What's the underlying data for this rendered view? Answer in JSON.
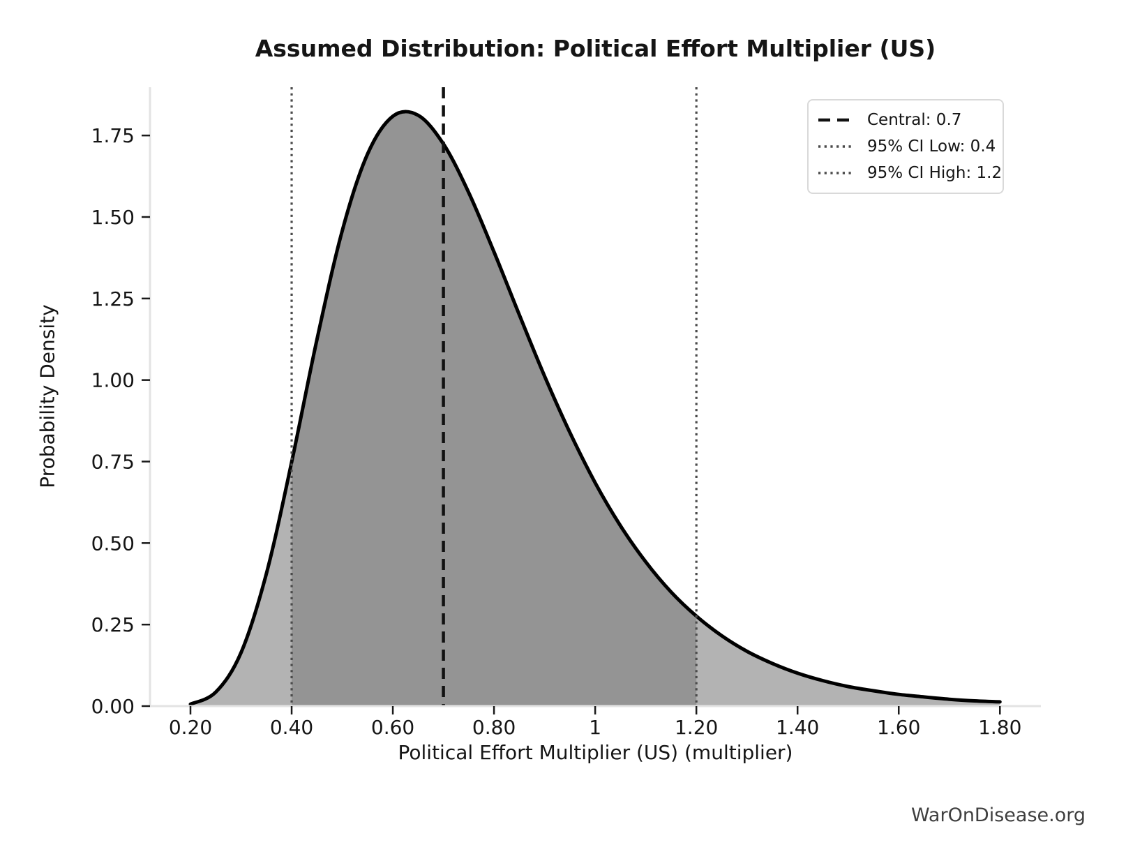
{
  "title": "Assumed Distribution: Political Effort Multiplier (US)",
  "watermark": "WarOnDisease.org",
  "legend": {
    "items": [
      {
        "label": "Central: 0.7",
        "line_style": "dashed",
        "color": "#111111"
      },
      {
        "label": "95% CI Low: 0.4",
        "line_style": "dotted",
        "color": "#4a4a4a"
      },
      {
        "label": "95% CI High: 1.2",
        "line_style": "dotted",
        "color": "#4a4a4a"
      }
    ]
  },
  "chart_data": {
    "type": "area",
    "title": "Assumed Distribution: Political Effort Multiplier (US)",
    "xlabel": "Political Effort Multiplier (US) (multiplier)",
    "ylabel": "Probability Density",
    "xlim": [
      0.12,
      1.881
    ],
    "ylim": [
      0,
      1.898
    ],
    "grid": false,
    "legend_position": "upper right",
    "distribution": "right-skewed (lognormal-like) probability density, central 0.7 with 95% CI [0.4, 1.2]",
    "central": 0.7,
    "ci_low": 0.4,
    "ci_high": 1.2,
    "x_ticks": [
      {
        "value": 0.2,
        "label": "0.20"
      },
      {
        "value": 0.4,
        "label": "0.40"
      },
      {
        "value": 0.6,
        "label": "0.60"
      },
      {
        "value": 0.8,
        "label": "0.80"
      },
      {
        "value": 1.0,
        "label": "1"
      },
      {
        "value": 1.2,
        "label": "1.20"
      },
      {
        "value": 1.4,
        "label": "1.40"
      },
      {
        "value": 1.6,
        "label": "1.60"
      },
      {
        "value": 1.8,
        "label": "1.80"
      }
    ],
    "y_ticks": [
      {
        "value": 0.0,
        "label": "0.00"
      },
      {
        "value": 0.25,
        "label": "0.25"
      },
      {
        "value": 0.5,
        "label": "0.50"
      },
      {
        "value": 0.75,
        "label": "0.75"
      },
      {
        "value": 1.0,
        "label": "1.00"
      },
      {
        "value": 1.25,
        "label": "1.25"
      },
      {
        "value": 1.5,
        "label": "1.50"
      },
      {
        "value": 1.75,
        "label": "1.75"
      }
    ],
    "curve": {
      "x": [
        0.2,
        0.25,
        0.3,
        0.35,
        0.4,
        0.45,
        0.5,
        0.55,
        0.6,
        0.65,
        0.7,
        0.75,
        0.8,
        0.85,
        0.9,
        0.95,
        1.0,
        1.05,
        1.1,
        1.15,
        1.2,
        1.25,
        1.3,
        1.35,
        1.4,
        1.45,
        1.5,
        1.55,
        1.6,
        1.65,
        1.7,
        1.75,
        1.8
      ],
      "density": [
        0.006,
        0.043,
        0.164,
        0.406,
        0.748,
        1.124,
        1.458,
        1.693,
        1.809,
        1.812,
        1.724,
        1.575,
        1.393,
        1.2,
        1.012,
        0.839,
        0.685,
        0.553,
        0.442,
        0.35,
        0.276,
        0.216,
        0.168,
        0.131,
        0.101,
        0.078,
        0.06,
        0.047,
        0.036,
        0.028,
        0.021,
        0.016,
        0.013
      ]
    },
    "colors": {
      "curve": "#000000",
      "fill": "#b3b3b3",
      "fill_ci": "#949494",
      "central_line": "#111111",
      "ci_line": "#4a4a4a",
      "spine": "#e3e3e3",
      "tick": "#1a1a1a",
      "text": "#151515",
      "watermark": "#3f3f3f",
      "background": "#ffffff"
    }
  }
}
